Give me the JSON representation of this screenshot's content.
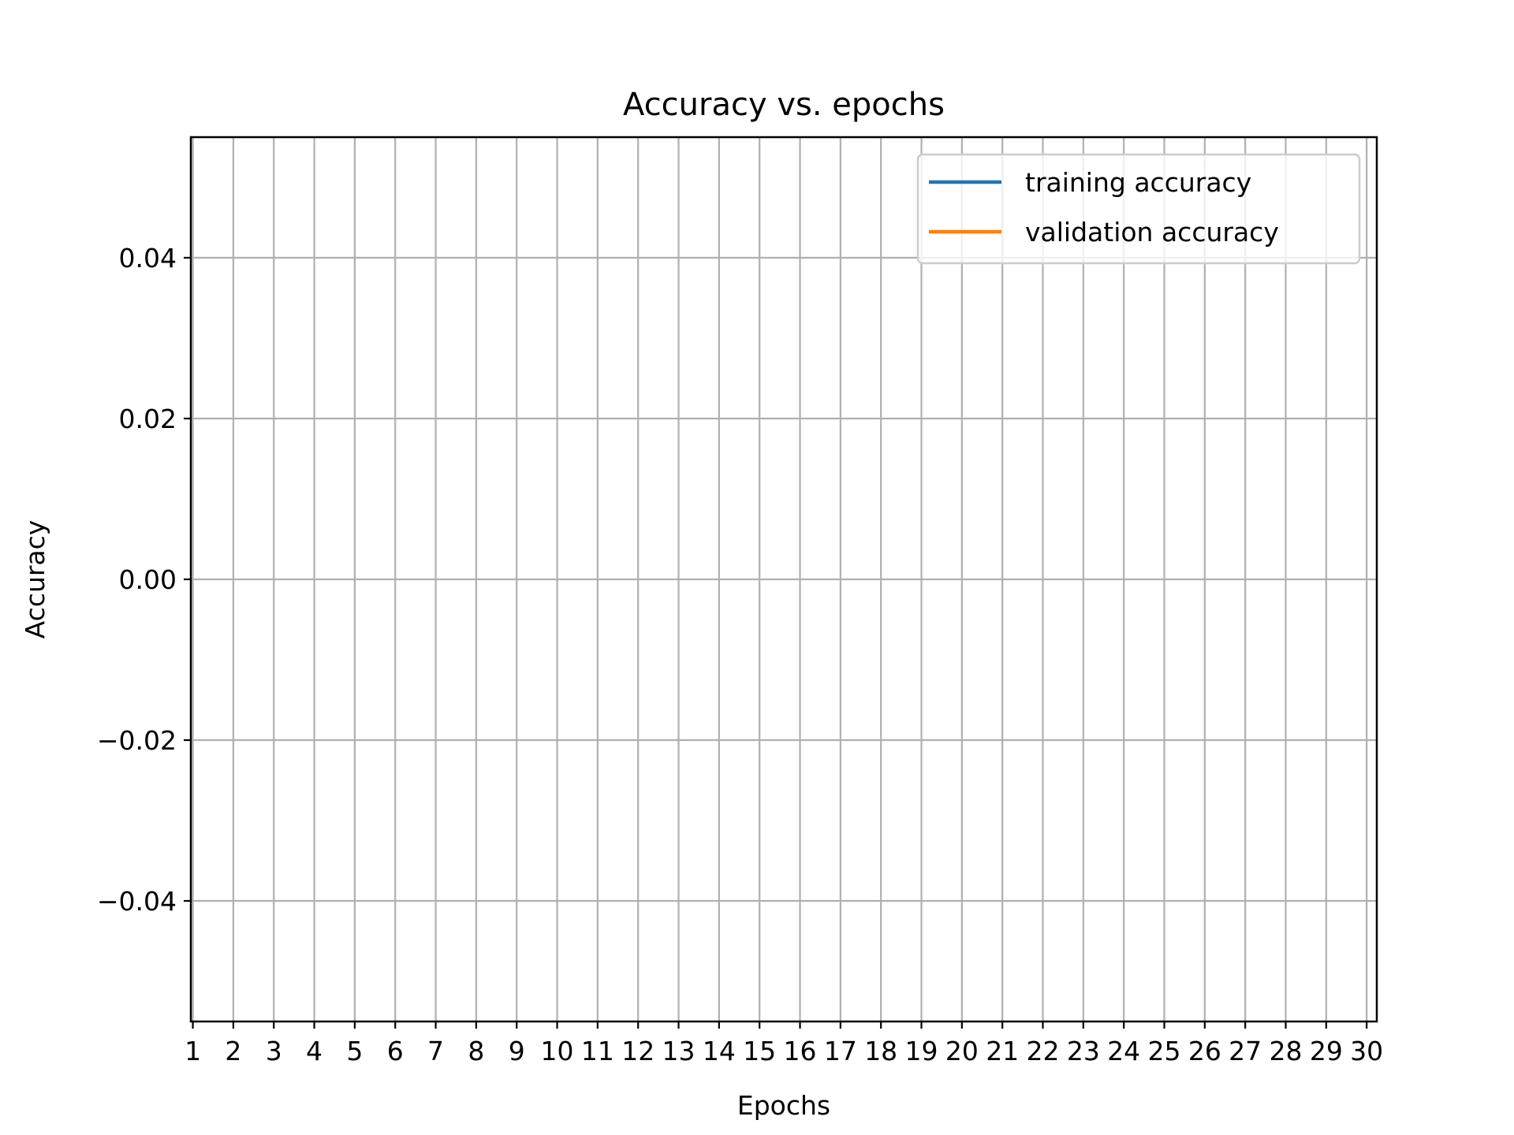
{
  "chart_data": {
    "type": "line",
    "title": "Accuracy vs. epochs",
    "xlabel": "Epochs",
    "ylabel": "Accuracy",
    "x_ticks": [
      "1",
      "2",
      "3",
      "4",
      "5",
      "6",
      "7",
      "8",
      "9",
      "10",
      "11",
      "12",
      "13",
      "14",
      "15",
      "16",
      "17",
      "18",
      "19",
      "20",
      "21",
      "22",
      "23",
      "24",
      "25",
      "26",
      "27",
      "28",
      "29",
      "30"
    ],
    "y_ticks": [
      "−0.04",
      "−0.02",
      "0.00",
      "0.02",
      "0.04"
    ],
    "y_tick_values": [
      -0.04,
      -0.02,
      0.0,
      0.02,
      0.04
    ],
    "xlim": [
      0.95,
      30.25
    ],
    "ylim": [
      -0.055,
      0.055
    ],
    "grid": true,
    "legend_position": "top-right",
    "series": [
      {
        "name": "training accuracy",
        "color": "#1f77b4",
        "x": [],
        "y": []
      },
      {
        "name": "validation accuracy",
        "color": "#ff7f0e",
        "x": [],
        "y": []
      }
    ]
  }
}
